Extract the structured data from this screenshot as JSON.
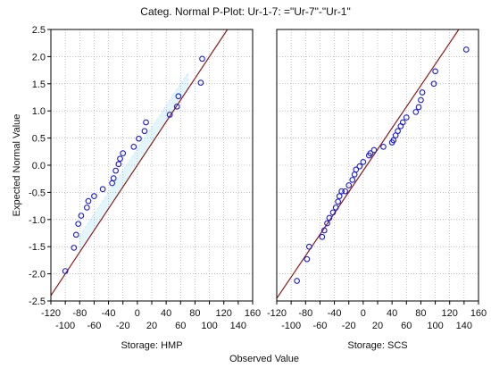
{
  "chart_data": {
    "type": "scatter",
    "title": "Categ. Normal P-Plot: Ur-1-7: =\"Ur-7\"-\"Ur-1\"",
    "xlabel": "Observed Value",
    "ylabel": "Expected Normal Value",
    "ylim": [
      -2.5,
      2.5
    ],
    "yticks": [
      "2.5",
      "2.0",
      "1.5",
      "1.0",
      "0.5",
      "0.0",
      "-0.5",
      "-1.0",
      "-1.5",
      "-2.0",
      "-2.5"
    ],
    "grid": true,
    "colors": {
      "marker": "#1a1ad6",
      "fit_line": "#8b1a1a",
      "band": "#66ccee"
    },
    "panels": [
      {
        "name": "Storage: HMP",
        "xlim": [
          -120,
          160
        ],
        "xticks_top": [
          "-120",
          "-80",
          "-40",
          "0",
          "40",
          "80",
          "120",
          "160"
        ],
        "xticks_bottom": [
          "-100",
          "-60",
          "-20",
          "20",
          "60",
          "100",
          "140"
        ],
        "fit_line": {
          "slope": 0.02,
          "intercept": 0.0
        },
        "points": [
          {
            "x": -100,
            "y": -1.95
          },
          {
            "x": -88,
            "y": -1.52
          },
          {
            "x": -85,
            "y": -1.28
          },
          {
            "x": -82,
            "y": -1.08
          },
          {
            "x": -78,
            "y": -0.93
          },
          {
            "x": -70,
            "y": -0.78
          },
          {
            "x": -68,
            "y": -0.66
          },
          {
            "x": -60,
            "y": -0.57
          },
          {
            "x": -48,
            "y": -0.44
          },
          {
            "x": -35,
            "y": -0.33
          },
          {
            "x": -33,
            "y": -0.24
          },
          {
            "x": -30,
            "y": -0.1
          },
          {
            "x": -26,
            "y": 0.02
          },
          {
            "x": -24,
            "y": 0.12
          },
          {
            "x": -20,
            "y": 0.22
          },
          {
            "x": -5,
            "y": 0.34
          },
          {
            "x": 2,
            "y": 0.49
          },
          {
            "x": 10,
            "y": 0.63
          },
          {
            "x": 12,
            "y": 0.79
          },
          {
            "x": 45,
            "y": 0.93
          },
          {
            "x": 55,
            "y": 1.08
          },
          {
            "x": 57,
            "y": 1.27
          },
          {
            "x": 88,
            "y": 1.52
          },
          {
            "x": 90,
            "y": 1.96
          }
        ]
      },
      {
        "name": "Storage: SCS",
        "xlim": [
          -120,
          160
        ],
        "xticks_top": [
          "-120",
          "-80",
          "-40",
          "0",
          "40",
          "80",
          "120",
          "160"
        ],
        "xticks_bottom": [
          "-100",
          "-60",
          "-20",
          "20",
          "60",
          "100",
          "140"
        ],
        "fit_line": {
          "slope": 0.0196,
          "intercept": -0.1
        },
        "points": [
          {
            "x": -92,
            "y": -2.13
          },
          {
            "x": -78,
            "y": -1.73
          },
          {
            "x": -75,
            "y": -1.5
          },
          {
            "x": -57,
            "y": -1.32
          },
          {
            "x": -54,
            "y": -1.2
          },
          {
            "x": -50,
            "y": -1.07
          },
          {
            "x": -47,
            "y": -0.97
          },
          {
            "x": -42,
            "y": -0.87
          },
          {
            "x": -38,
            "y": -0.78
          },
          {
            "x": -35,
            "y": -0.67
          },
          {
            "x": -33,
            "y": -0.57
          },
          {
            "x": -30,
            "y": -0.48
          },
          {
            "x": -25,
            "y": -0.48
          },
          {
            "x": -20,
            "y": -0.37
          },
          {
            "x": -15,
            "y": -0.27
          },
          {
            "x": -12,
            "y": -0.17
          },
          {
            "x": -10,
            "y": -0.08
          },
          {
            "x": -5,
            "y": -0.02
          },
          {
            "x": 0,
            "y": 0.06
          },
          {
            "x": 8,
            "y": 0.18
          },
          {
            "x": 10,
            "y": 0.22
          },
          {
            "x": 15,
            "y": 0.28
          },
          {
            "x": 28,
            "y": 0.34
          },
          {
            "x": 40,
            "y": 0.42
          },
          {
            "x": 42,
            "y": 0.46
          },
          {
            "x": 45,
            "y": 0.55
          },
          {
            "x": 48,
            "y": 0.63
          },
          {
            "x": 52,
            "y": 0.72
          },
          {
            "x": 55,
            "y": 0.79
          },
          {
            "x": 60,
            "y": 0.88
          },
          {
            "x": 73,
            "y": 0.98
          },
          {
            "x": 77,
            "y": 1.07
          },
          {
            "x": 80,
            "y": 1.2
          },
          {
            "x": 82,
            "y": 1.34
          },
          {
            "x": 98,
            "y": 1.5
          },
          {
            "x": 100,
            "y": 1.73
          },
          {
            "x": 143,
            "y": 2.13
          }
        ]
      }
    ]
  }
}
